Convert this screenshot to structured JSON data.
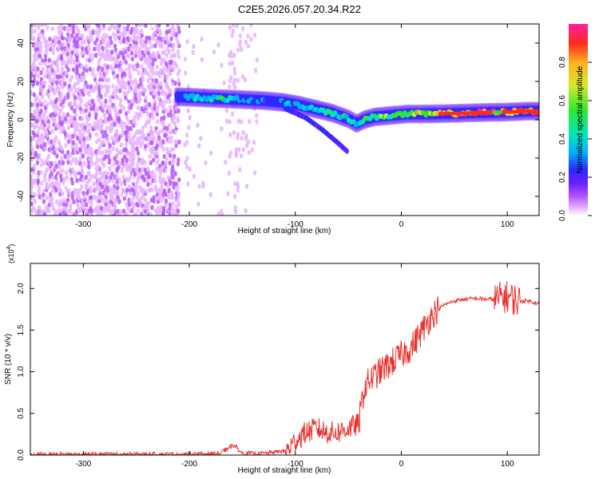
{
  "title": "C2E5.2026.057.20.34.R22",
  "colors": {
    "snr_line": "#e8322f",
    "frame": "#000000",
    "colormap": [
      "#ffffff",
      "#e6b3ff",
      "#b455ff",
      "#6a1fff",
      "#2a2aff",
      "#00b0ff",
      "#00e5c0",
      "#2ee82e",
      "#d8e82e",
      "#ffb020",
      "#ff2a1a",
      "#ff1fa0"
    ]
  },
  "chart_data": [
    {
      "type": "heatmap",
      "title": "C2E5.2026.057.20.34.R22",
      "xlabel": "Height of straight line (km)",
      "ylabel": "Frequency (Hz)",
      "xlim": [
        -350,
        130
      ],
      "ylim": [
        -50,
        50
      ],
      "x_ticks": [
        -300,
        -200,
        -100,
        0,
        100
      ],
      "y_ticks": [
        -40,
        -20,
        0,
        20,
        40
      ],
      "colorbar": {
        "label": "Normalized spectral amplitude",
        "range": [
          0,
          1
        ],
        "ticks": [
          "0.0",
          "0.2",
          "0.4",
          "0.6",
          "0.8"
        ],
        "tick_values": [
          0.0,
          0.2,
          0.4,
          0.6,
          0.8
        ]
      },
      "ridge": {
        "x": [
          -210,
          -190,
          -170,
          -150,
          -130,
          -110,
          -95,
          -80,
          -65,
          -50,
          -42,
          -35,
          -25,
          -15,
          -5,
          5,
          20,
          40,
          60,
          80,
          100,
          120,
          130
        ],
        "freq": [
          12,
          11.5,
          11,
          10.5,
          10,
          9,
          7.5,
          5.5,
          3.5,
          0.5,
          -2,
          0,
          1.5,
          2,
          2.5,
          3,
          3,
          3.2,
          3.5,
          3.8,
          4,
          4.5,
          4.5
        ],
        "amplitude": [
          0.45,
          0.5,
          0.6,
          0.45,
          0.4,
          0.45,
          0.5,
          0.55,
          0.6,
          0.55,
          0.55,
          0.6,
          0.65,
          0.7,
          0.65,
          0.7,
          0.75,
          0.9,
          0.95,
          0.95,
          0.9,
          0.95,
          0.95
        ]
      },
      "secondary_branch": {
        "x": [
          -110,
          -90,
          -75,
          -60,
          -50
        ],
        "freq": [
          6,
          1,
          -5,
          -12,
          -17
        ]
      }
    },
    {
      "type": "line",
      "title": "",
      "xlabel": "Height of straight line (km)",
      "ylabel": "SNR (10 * v/v)",
      "y_multiplier": "(x10",
      "y_multiplier_exp": "4",
      "xlim": [
        -350,
        130
      ],
      "ylim": [
        0,
        2.3
      ],
      "x_ticks": [
        -300,
        -200,
        -100,
        0,
        100
      ],
      "y_ticks": [
        "0.0",
        "0.5",
        "1.0",
        "1.5",
        "2.0"
      ],
      "y_tick_values": [
        0.0,
        0.5,
        1.0,
        1.5,
        2.0
      ],
      "series": [
        {
          "name": "SNR",
          "x": [
            -350,
            -300,
            -250,
            -200,
            -170,
            -160,
            -155,
            -150,
            -130,
            -110,
            -100,
            -90,
            -80,
            -70,
            -60,
            -50,
            -40,
            -35,
            -30,
            -20,
            -10,
            0,
            10,
            20,
            30,
            40,
            50,
            60,
            70,
            80,
            90,
            95,
            100,
            105,
            110,
            115,
            120,
            130
          ],
          "y": [
            0.01,
            0.01,
            0.01,
            0.01,
            0.02,
            0.1,
            0.08,
            0.02,
            0.02,
            0.05,
            0.2,
            0.3,
            0.35,
            0.3,
            0.3,
            0.35,
            0.4,
            0.8,
            0.9,
            1.0,
            1.1,
            1.2,
            1.3,
            1.5,
            1.7,
            1.8,
            1.85,
            1.87,
            1.88,
            1.87,
            1.87,
            1.9,
            1.9,
            1.88,
            1.85,
            1.85,
            1.85,
            1.82
          ]
        }
      ]
    }
  ]
}
